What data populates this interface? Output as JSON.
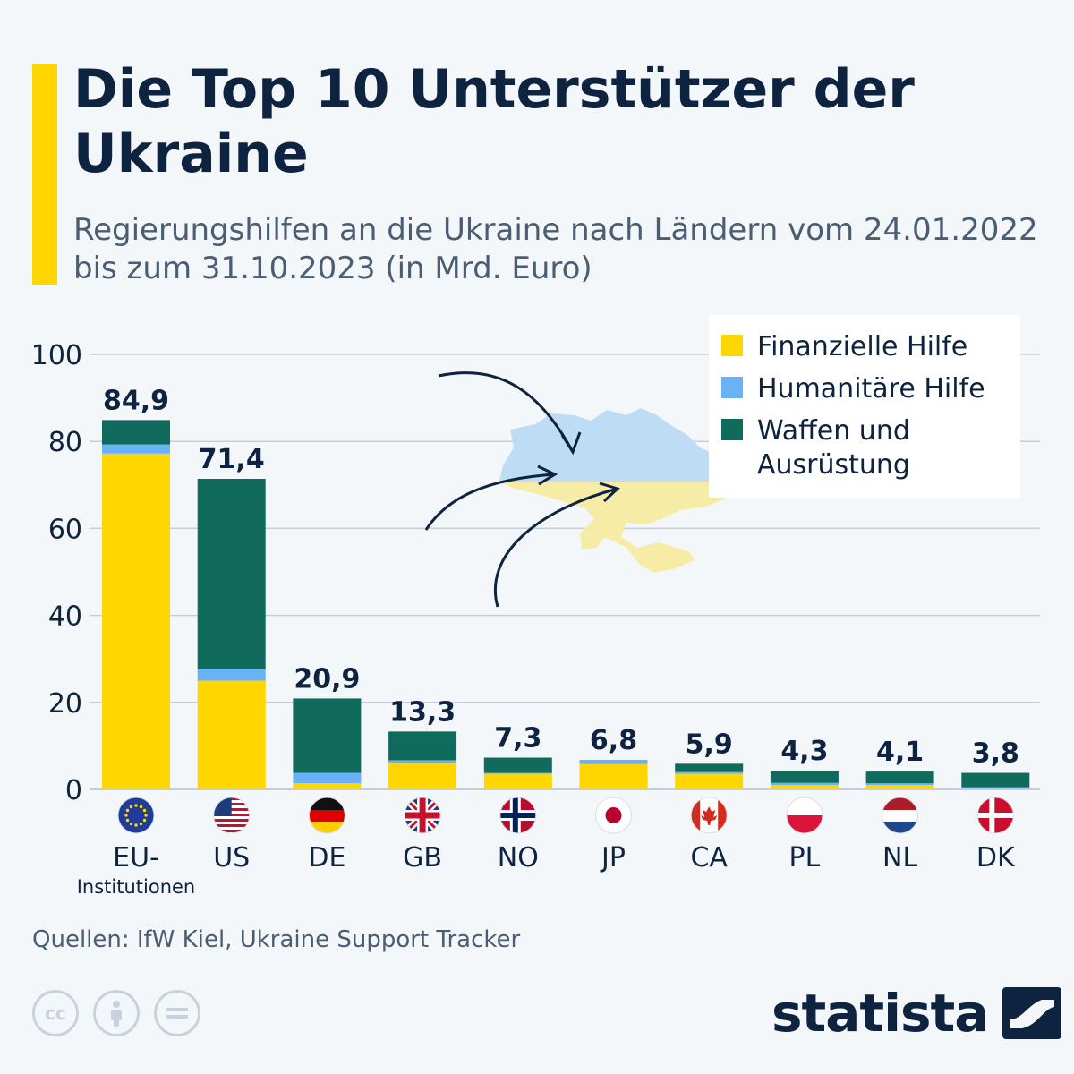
{
  "title": "Die Top 10 Unterstützer der Ukraine",
  "subtitle": "Regierungshilfen an die Ukraine nach Ländern vom 24.01.2022 bis zum 31.10.2023 (in Mrd. Euro)",
  "colors": {
    "financial": "#ffd600",
    "humanitarian": "#6ab2f7",
    "military": "#106b5d",
    "accent": "#ffd600",
    "text": "#0d2340",
    "grid": "#c5cdd6"
  },
  "chart_data": {
    "type": "bar",
    "stacked": true,
    "categories": [
      "EU-Institutionen",
      "US",
      "DE",
      "GB",
      "NO",
      "JP",
      "CA",
      "PL",
      "NL",
      "DK"
    ],
    "category_labels": [
      [
        "EU-",
        "Institutionen"
      ],
      [
        "US"
      ],
      [
        "DE"
      ],
      [
        "GB"
      ],
      [
        "NO"
      ],
      [
        "JP"
      ],
      [
        "CA"
      ],
      [
        "PL"
      ],
      [
        "NL"
      ],
      [
        "DK"
      ]
    ],
    "flags": [
      "eu-flag-icon",
      "us-flag-icon",
      "de-flag-icon",
      "gb-flag-icon",
      "no-flag-icon",
      "jp-flag-icon",
      "ca-flag-icon",
      "pl-flag-icon",
      "nl-flag-icon",
      "dk-flag-icon"
    ],
    "series": [
      {
        "name": "Finanzielle Hilfe",
        "color": "#ffd600",
        "values": [
          77.2,
          25.0,
          1.4,
          6.1,
          3.6,
          5.8,
          3.6,
          1.0,
          1.0,
          0.2
        ]
      },
      {
        "name": "Humanitäre Hilfe",
        "color": "#6ab2f7",
        "values": [
          2.1,
          2.6,
          2.4,
          0.6,
          0.2,
          1.0,
          0.4,
          0.5,
          0.4,
          0.3
        ]
      },
      {
        "name": "Waffen und Ausrüstung",
        "color": "#106b5d",
        "values": [
          5.6,
          43.8,
          17.1,
          6.6,
          3.5,
          0.0,
          1.9,
          2.8,
          2.7,
          3.3
        ]
      }
    ],
    "totals": [
      "84,9",
      "71,4",
      "20,9",
      "13,3",
      "7,3",
      "6,8",
      "5,9",
      "4,3",
      "4,1",
      "3,8"
    ],
    "yticks": [
      0,
      20,
      40,
      60,
      80,
      100
    ],
    "ylim": [
      0,
      100
    ],
    "legend": [
      "Finanzielle Hilfe",
      "Humanitäre Hilfe",
      [
        "Waffen und",
        "Ausrüstung"
      ]
    ],
    "legend_position": "top-right",
    "grid": true
  },
  "footer": {
    "source": "Quellen: IfW Kiel, Ukraine Support Tracker",
    "cc_icons": [
      "cc-icon",
      "person-icon",
      "equal-icon"
    ],
    "brand": "statista"
  }
}
